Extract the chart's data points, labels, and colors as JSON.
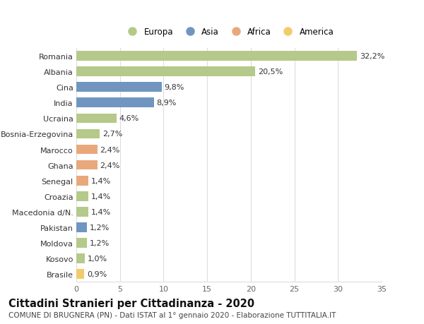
{
  "countries": [
    "Romania",
    "Albania",
    "Cina",
    "India",
    "Ucraina",
    "Bosnia-Erzegovina",
    "Marocco",
    "Ghana",
    "Senegal",
    "Croazia",
    "Macedonia d/N.",
    "Pakistan",
    "Moldova",
    "Kosovo",
    "Brasile"
  ],
  "values": [
    32.2,
    20.5,
    9.8,
    8.9,
    4.6,
    2.7,
    2.4,
    2.4,
    1.4,
    1.4,
    1.4,
    1.2,
    1.2,
    1.0,
    0.9
  ],
  "labels": [
    "32,2%",
    "20,5%",
    "9,8%",
    "8,9%",
    "4,6%",
    "2,7%",
    "2,4%",
    "2,4%",
    "1,4%",
    "1,4%",
    "1,4%",
    "1,2%",
    "1,2%",
    "1,0%",
    "0,9%"
  ],
  "continents": [
    "Europa",
    "Europa",
    "Asia",
    "Asia",
    "Europa",
    "Europa",
    "Africa",
    "Africa",
    "Africa",
    "Europa",
    "Europa",
    "Asia",
    "Europa",
    "Europa",
    "America"
  ],
  "colors": {
    "Europa": "#b5c98a",
    "Asia": "#7096c0",
    "Africa": "#e8a87c",
    "America": "#f2cc6a"
  },
  "legend_order": [
    "Europa",
    "Asia",
    "Africa",
    "America"
  ],
  "title": "Cittadini Stranieri per Cittadinanza - 2020",
  "subtitle": "COMUNE DI BRUGNERA (PN) - Dati ISTAT al 1° gennaio 2020 - Elaborazione TUTTITALIA.IT",
  "xlim": [
    0,
    35
  ],
  "xticks": [
    0,
    5,
    10,
    15,
    20,
    25,
    30,
    35
  ],
  "background_color": "#ffffff",
  "grid_color": "#dddddd",
  "bar_height": 0.62,
  "title_fontsize": 10.5,
  "subtitle_fontsize": 7.5,
  "tick_fontsize": 8,
  "label_fontsize": 8,
  "legend_fontsize": 8.5
}
